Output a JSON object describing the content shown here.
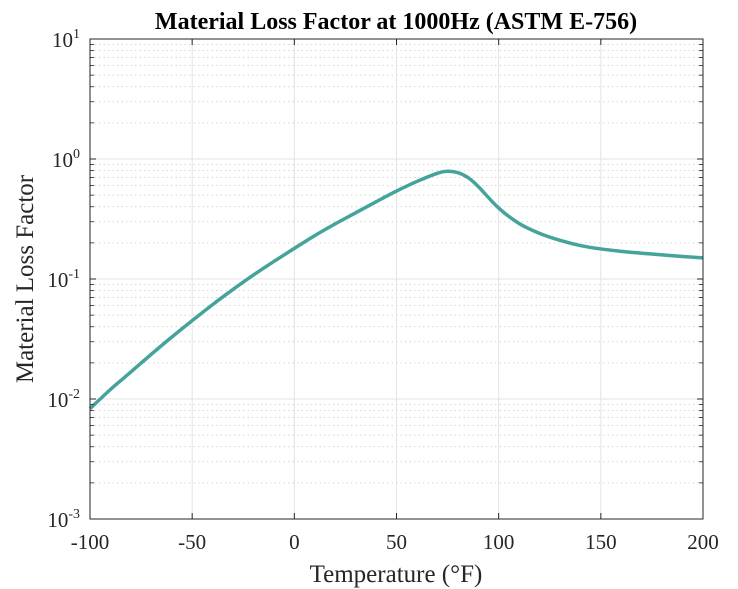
{
  "chart_data": {
    "type": "line",
    "title": "Material Loss Factor at 1000Hz (ASTM E-756)",
    "xlabel": "Temperature (°F)",
    "ylabel": "Material Loss Factor",
    "xlim": [
      -100,
      200
    ],
    "ylim": [
      0.001,
      10
    ],
    "yscale": "log",
    "grid": true,
    "minor_grid": true,
    "x_ticks": [
      -100,
      -50,
      0,
      50,
      100,
      150,
      200
    ],
    "x_tick_labels": [
      "-100",
      "-50",
      "0",
      "50",
      "100",
      "150",
      "200"
    ],
    "y_ticks": [
      {
        "value": 0.001,
        "base": "10",
        "exp": "-3"
      },
      {
        "value": 0.01,
        "base": "10",
        "exp": "-2"
      },
      {
        "value": 0.1,
        "base": "10",
        "exp": "-1"
      },
      {
        "value": 1,
        "base": "10",
        "exp": "0"
      },
      {
        "value": 10,
        "base": "10",
        "exp": "1"
      }
    ],
    "series": [
      {
        "color": "#44a49c",
        "x": [
          -100,
          -90,
          -80,
          -70,
          -60,
          -50,
          -40,
          -30,
          -20,
          -10,
          0,
          10,
          20,
          30,
          40,
          50,
          60,
          70,
          75,
          80,
          85,
          90,
          100,
          110,
          120,
          130,
          140,
          150,
          160,
          170,
          180,
          190,
          200
        ],
        "y": [
          0.0083,
          0.012,
          0.0168,
          0.0236,
          0.0328,
          0.045,
          0.0612,
          0.0818,
          0.108,
          0.14,
          0.18,
          0.23,
          0.288,
          0.356,
          0.44,
          0.54,
          0.65,
          0.76,
          0.79,
          0.77,
          0.7,
          0.59,
          0.39,
          0.29,
          0.24,
          0.21,
          0.19,
          0.178,
          0.17,
          0.164,
          0.159,
          0.154,
          0.15
        ]
      }
    ]
  }
}
